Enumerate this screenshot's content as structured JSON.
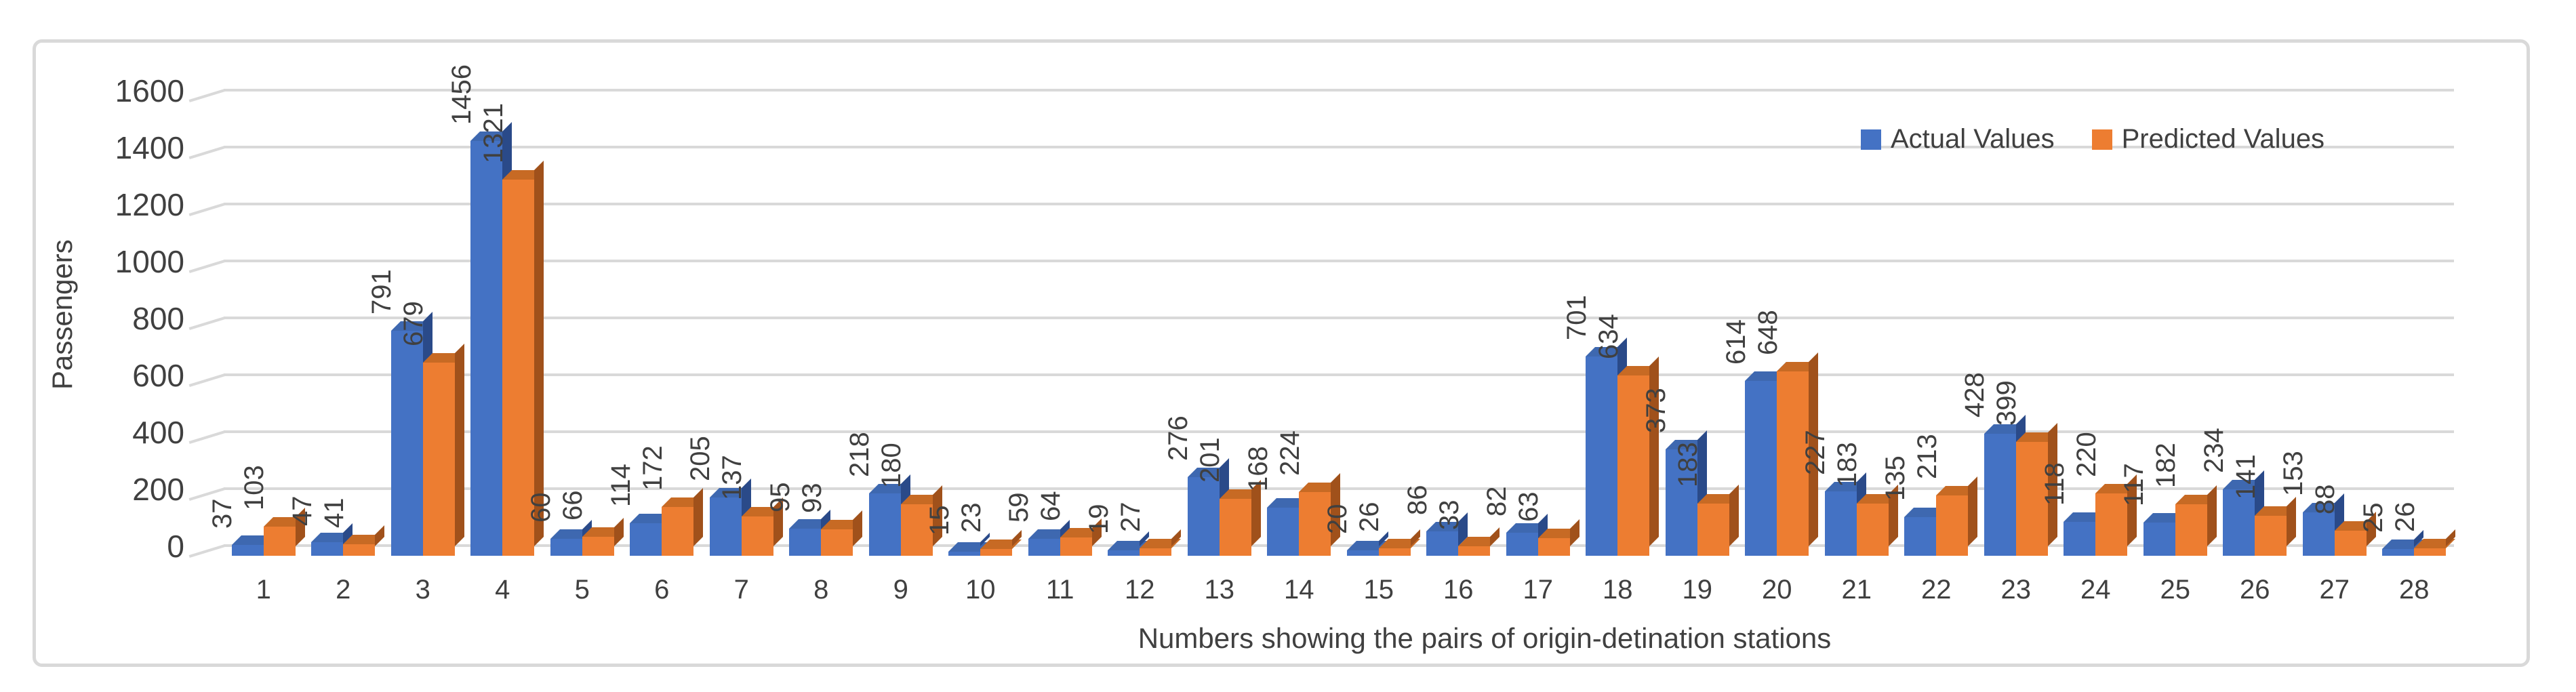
{
  "chart_data": {
    "type": "bar",
    "bar_style": "3d",
    "title": "",
    "xlabel": "Numbers showing the pairs of origin-detination stations",
    "ylabel": "Passengers",
    "categories": [
      "1",
      "2",
      "3",
      "4",
      "5",
      "6",
      "7",
      "8",
      "9",
      "10",
      "11",
      "12",
      "13",
      "14",
      "15",
      "16",
      "17",
      "18",
      "19",
      "20",
      "21",
      "22",
      "23",
      "24",
      "25",
      "26",
      "27",
      "28"
    ],
    "series": [
      {
        "name": "Actual Values",
        "color": "#4472C4",
        "side_color": "#2A4A89",
        "top_color": "#3E68B0",
        "values": [
          37,
          47,
          791,
          1456,
          60,
          114,
          205,
          95,
          218,
          15,
          59,
          19,
          276,
          168,
          20,
          86,
          82,
          701,
          373,
          614,
          227,
          135,
          428,
          118,
          117,
          234,
          153,
          25
        ]
      },
      {
        "name": "Predicted Values",
        "color": "#ED7D31",
        "side_color": "#A0511B",
        "top_color": "#C76A24",
        "values": [
          103,
          41,
          679,
          1321,
          66,
          172,
          137,
          93,
          180,
          23,
          64,
          27,
          201,
          224,
          26,
          33,
          63,
          634,
          183,
          648,
          183,
          213,
          399,
          220,
          182,
          141,
          88,
          26
        ]
      }
    ],
    "y_ticks": [
      0,
      200,
      400,
      600,
      800,
      1000,
      1200,
      1400,
      1600
    ],
    "ylim": [
      0,
      1600
    ],
    "grid": true,
    "legend_position": "top-right",
    "gridline_color": "#D9D9D9",
    "frame_border_color": "#D9D9D9",
    "text_color": "#404040"
  }
}
